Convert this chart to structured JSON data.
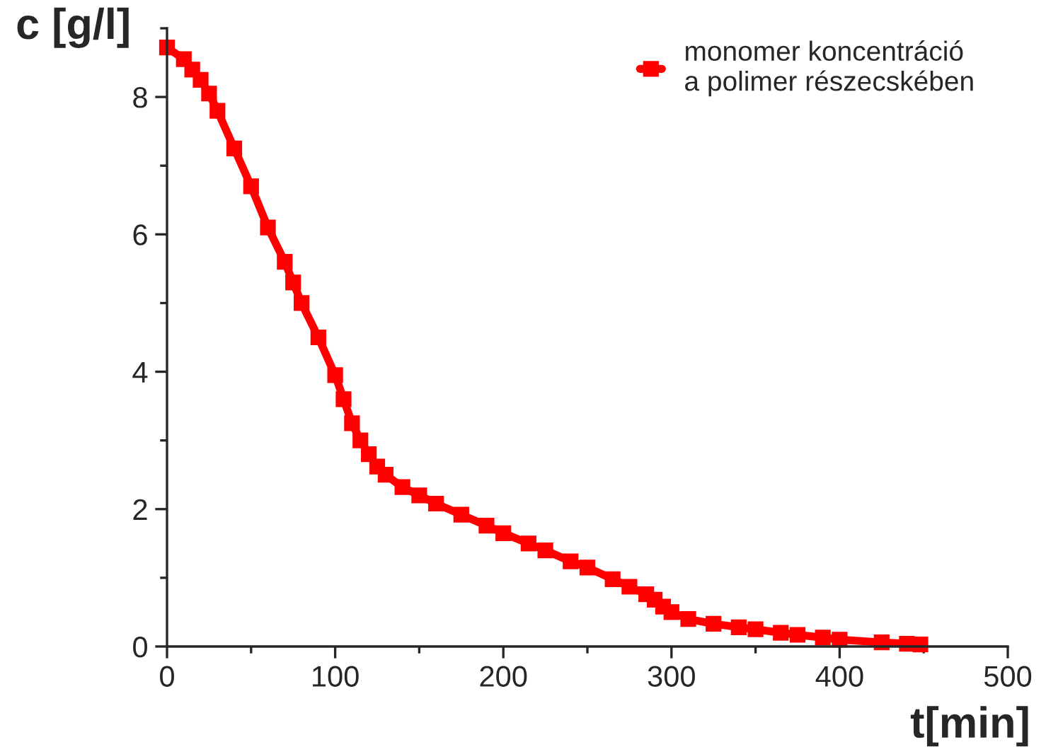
{
  "chart_data": {
    "type": "line",
    "xlabel": "t[min]",
    "ylabel": "c [g/l]",
    "xlim": [
      0,
      500
    ],
    "ylim": [
      0,
      9
    ],
    "xticks": [
      0,
      100,
      200,
      300,
      400,
      500
    ],
    "yticks": [
      0,
      2,
      4,
      6,
      8
    ],
    "marker": "square",
    "legend": "top right",
    "grid": false,
    "series": [
      {
        "name": "monomer koncentráció\na polimer részecskében",
        "color": "#ff0000",
        "x": [
          0,
          10,
          15,
          20,
          25,
          30,
          40,
          50,
          60,
          70,
          75,
          80,
          90,
          100,
          105,
          110,
          115,
          120,
          125,
          130,
          140,
          150,
          160,
          175,
          190,
          200,
          215,
          225,
          240,
          250,
          265,
          275,
          285,
          290,
          295,
          300,
          310,
          325,
          340,
          350,
          365,
          375,
          390,
          400,
          425,
          440,
          448
        ],
        "values": [
          8.72,
          8.55,
          8.4,
          8.25,
          8.05,
          7.8,
          7.25,
          6.7,
          6.1,
          5.6,
          5.3,
          5.0,
          4.5,
          3.95,
          3.6,
          3.25,
          3.0,
          2.8,
          2.62,
          2.5,
          2.32,
          2.2,
          2.08,
          1.92,
          1.76,
          1.65,
          1.5,
          1.4,
          1.24,
          1.15,
          0.98,
          0.87,
          0.76,
          0.68,
          0.58,
          0.5,
          0.4,
          0.33,
          0.28,
          0.25,
          0.2,
          0.17,
          0.13,
          0.1,
          0.06,
          0.04,
          0.03
        ]
      }
    ]
  }
}
